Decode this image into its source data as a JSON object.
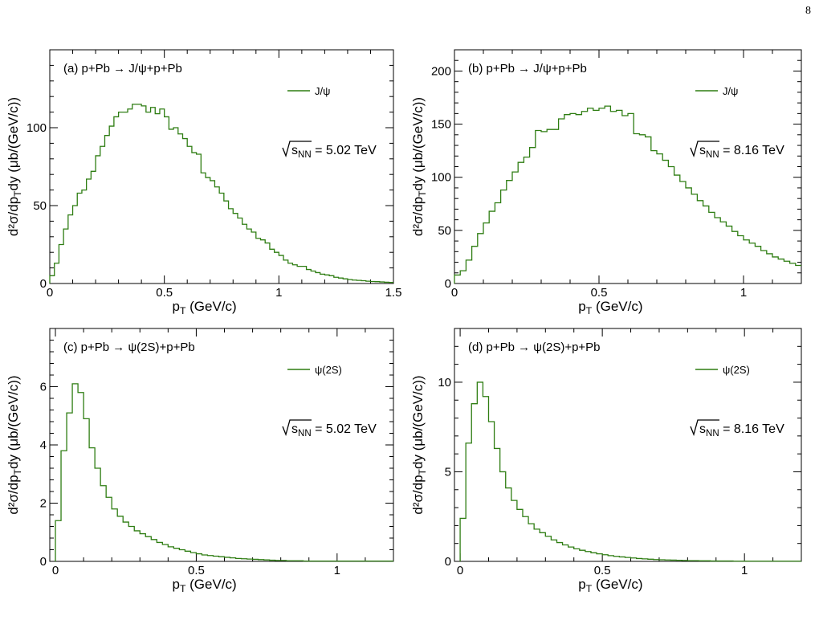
{
  "page": {
    "number": "8"
  },
  "chart_data": [
    {
      "type": "line",
      "step": true,
      "title": "(a) p+Pb   → J/ψ+p+Pb",
      "xlabel": "p_T (GeV/c)",
      "ylabel": "d²σ/dp_Tdy (μb/(GeV/c))",
      "xlim": [
        0,
        1.5
      ],
      "ylim": [
        0,
        150
      ],
      "xticks": [
        0,
        0.5,
        1,
        1.5
      ],
      "xtick_labels": [
        "0",
        "0.5",
        "1",
        "1.5"
      ],
      "yticks": [
        0,
        50,
        100
      ],
      "ytick_labels": [
        "0",
        "50",
        "100"
      ],
      "annotation": "√s_NN = 5.02 TeV",
      "legend_position": "top-right",
      "series": [
        {
          "name": "J/ψ",
          "color": "#2e7d12",
          "bin_width": 0.02,
          "values": [
            5,
            13,
            25,
            35,
            44,
            50,
            58,
            60,
            67,
            72,
            82,
            88,
            95,
            101,
            107,
            110,
            110,
            112,
            115,
            115,
            114,
            110,
            113,
            109,
            112,
            107,
            99,
            100,
            96,
            93,
            88,
            84,
            83,
            71,
            68,
            66,
            62,
            58,
            53,
            48,
            45,
            42,
            38,
            35,
            33,
            29,
            28,
            26,
            22,
            20,
            18,
            15,
            13,
            12,
            11,
            11,
            9,
            8,
            7,
            6,
            5.5,
            5,
            4,
            3.5,
            3,
            2.5,
            2.2,
            2,
            1.8,
            1.5,
            1.3,
            1.2,
            1,
            0.8,
            0.7,
            0.6,
            0.5,
            0.5,
            0.4,
            0.3,
            0.3,
            0.2,
            0.2,
            0.2,
            0.1,
            0.1,
            0.1,
            0.1,
            0.1,
            0.1
          ]
        }
      ]
    },
    {
      "type": "line",
      "step": true,
      "title": "(b) p+Pb   → J/ψ+p+Pb",
      "xlabel": "p_T (GeV/c)",
      "ylabel": "d²σ/dp_Tdy (μb/(GeV/c))",
      "xlim": [
        0,
        1.2
      ],
      "ylim": [
        0,
        220
      ],
      "xticks": [
        0,
        0.5,
        1
      ],
      "xtick_labels": [
        "0",
        "0.5",
        "1"
      ],
      "yticks": [
        0,
        50,
        100,
        150,
        200
      ],
      "ytick_labels": [
        "0",
        "50",
        "100",
        "150",
        "200"
      ],
      "annotation": "√s_NN = 8.16 TeV",
      "legend_position": "top-right",
      "series": [
        {
          "name": "J/ψ",
          "color": "#2e7d12",
          "bin_width": 0.02,
          "values": [
            8,
            12,
            22,
            35,
            47,
            57,
            68,
            76,
            88,
            97,
            105,
            114,
            119,
            128,
            144,
            143,
            145,
            145,
            155,
            159,
            160,
            159,
            162,
            165,
            163,
            165,
            167,
            162,
            163,
            158,
            160,
            141,
            140,
            138,
            125,
            122,
            116,
            110,
            102,
            96,
            90,
            84,
            78,
            73,
            67,
            62,
            58,
            54,
            49,
            45,
            41,
            38,
            35,
            31,
            28,
            25,
            23,
            21,
            19,
            17,
            15,
            13,
            12,
            11,
            9,
            8,
            6,
            5,
            4,
            3
          ]
        }
      ]
    },
    {
      "type": "line",
      "step": true,
      "title": "(c) p+Pb   →   ψ(2S)+p+Pb",
      "xlabel": "p_T (GeV/c)",
      "ylabel": "d²σ/dp_Tdy (μb/(GeV/c))",
      "xlim": [
        -0.02,
        1.2
      ],
      "ylim": [
        0,
        8
      ],
      "xticks": [
        0,
        0.5,
        1
      ],
      "xtick_labels": [
        "0",
        "0.5",
        "1"
      ],
      "yticks": [
        0,
        2,
        4,
        6
      ],
      "ytick_labels": [
        "0",
        "2",
        "4",
        "6"
      ],
      "annotation": "√s_NN = 5.02 TeV",
      "legend_position": "top-right",
      "series": [
        {
          "name": "ψ(2S)",
          "color": "#2e7d12",
          "bin_width": 0.02,
          "values": [
            1.4,
            3.8,
            5.1,
            6.1,
            5.8,
            4.9,
            3.9,
            3.2,
            2.6,
            2.2,
            1.8,
            1.55,
            1.35,
            1.2,
            1.05,
            0.95,
            0.85,
            0.75,
            0.65,
            0.58,
            0.5,
            0.45,
            0.4,
            0.35,
            0.3,
            0.26,
            0.22,
            0.2,
            0.18,
            0.16,
            0.14,
            0.12,
            0.1,
            0.09,
            0.08,
            0.07,
            0.06,
            0.05,
            0.04,
            0.03,
            0.03,
            0.02,
            0.02,
            0.02,
            0.01,
            0.01,
            0.01,
            0.01,
            0.01,
            0.01,
            0.01,
            0.01,
            0.01,
            0.01,
            0.01,
            0.01,
            0.01,
            0.01,
            0.01,
            0.01
          ]
        }
      ]
    },
    {
      "type": "line",
      "step": true,
      "title": "(d) p+Pb   →   ψ(2S)+p+Pb",
      "xlabel": "p_T (GeV/c)",
      "ylabel": "d²σ/dp_Tdy (μb/(GeV/c))",
      "xlim": [
        -0.02,
        1.2
      ],
      "ylim": [
        0,
        13
      ],
      "xticks": [
        0,
        0.5,
        1
      ],
      "xtick_labels": [
        "0",
        "0.5",
        "1"
      ],
      "yticks": [
        0,
        5,
        10
      ],
      "ytick_labels": [
        "0",
        "5",
        "10"
      ],
      "annotation": "√s_NN = 8.16 TeV",
      "legend_position": "top-right",
      "series": [
        {
          "name": "ψ(2S)",
          "color": "#2e7d12",
          "bin_width": 0.02,
          "values": [
            2.4,
            6.6,
            8.8,
            10,
            9.2,
            7.8,
            6.3,
            5,
            4.1,
            3.4,
            2.9,
            2.5,
            2.1,
            1.8,
            1.6,
            1.4,
            1.2,
            1.05,
            0.92,
            0.8,
            0.7,
            0.62,
            0.55,
            0.48,
            0.42,
            0.37,
            0.32,
            0.28,
            0.25,
            0.22,
            0.19,
            0.16,
            0.14,
            0.12,
            0.1,
            0.09,
            0.08,
            0.07,
            0.06,
            0.05,
            0.04,
            0.04,
            0.03,
            0.03,
            0.02,
            0.02,
            0.02,
            0.02,
            0.01,
            0.01,
            0.01,
            0.01,
            0.01,
            0.01,
            0.01,
            0.01,
            0.01,
            0.01,
            0.01,
            0.01
          ]
        }
      ]
    }
  ]
}
